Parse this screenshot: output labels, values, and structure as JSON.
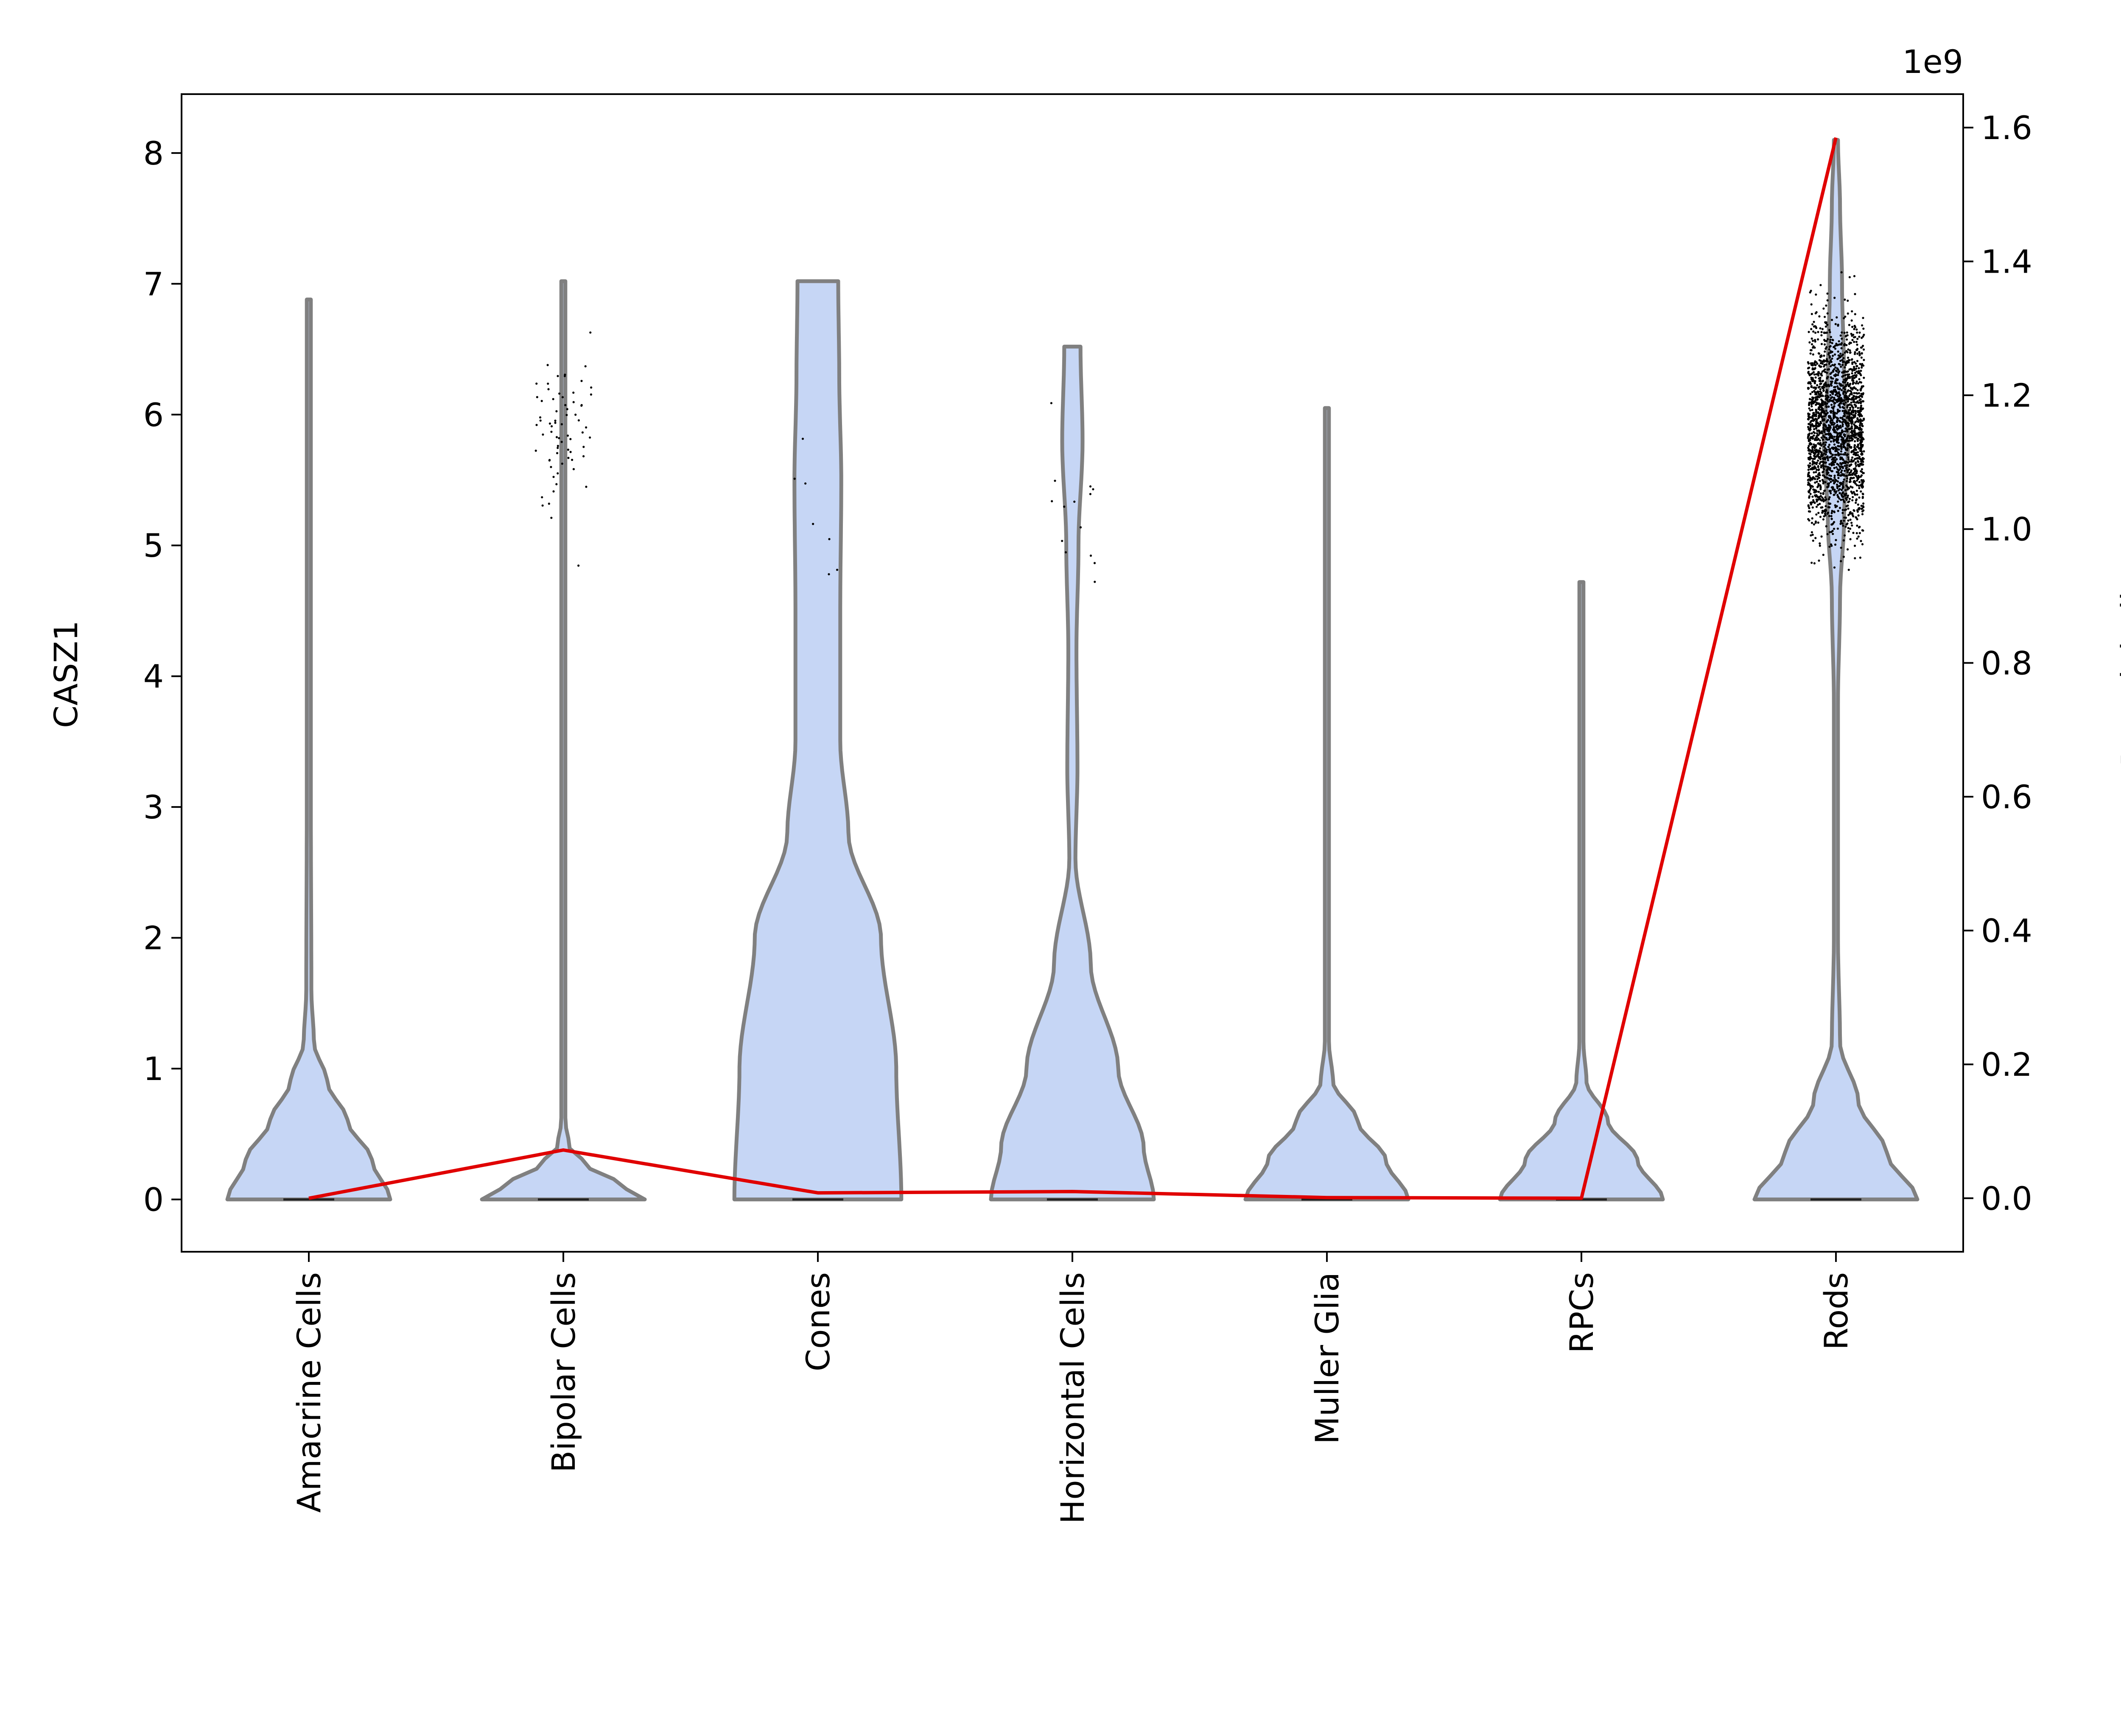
{
  "chart_data": {
    "type": "violin",
    "categories": [
      "Amacrine Cells",
      "Bipolar Cells",
      "Cones",
      "Horizontal Cells",
      "Muller Glia",
      "RPCs",
      "Rods"
    ],
    "ylabel": "CASZ1",
    "y2label": "Pseudobulk",
    "y2_offset_label": "1e9",
    "ylim": [
      -0.4,
      8.45
    ],
    "y2lim": [
      -0.08,
      1.65
    ],
    "yticks": [
      "0",
      "1",
      "2",
      "3",
      "4",
      "5",
      "6",
      "7",
      "8"
    ],
    "y2ticks": [
      "0.0",
      "0.2",
      "0.4",
      "0.6",
      "0.8",
      "1.0",
      "1.2",
      "1.4",
      "1.6"
    ],
    "violins": [
      {
        "category": "Amacrine Cells",
        "max": 6.88,
        "profile": [
          [
            0,
            0.8
          ],
          [
            0.3,
            0.62
          ],
          [
            0.6,
            0.38
          ],
          [
            0.9,
            0.18
          ],
          [
            1.2,
            0.05
          ],
          [
            1.6,
            0.025
          ],
          [
            3,
            0.02
          ],
          [
            6.2,
            0.02
          ],
          [
            6.88,
            0.02
          ]
        ]
      },
      {
        "category": "Bipolar Cells",
        "max": 7.02,
        "profile": [
          [
            0,
            0.8
          ],
          [
            0.12,
            0.55
          ],
          [
            0.25,
            0.25
          ],
          [
            0.4,
            0.06
          ],
          [
            0.6,
            0.02
          ],
          [
            4.5,
            0.02
          ],
          [
            7.02,
            0.02
          ]
        ]
      },
      {
        "category": "Cones",
        "max": 7.02,
        "profile": [
          [
            0,
            0.82
          ],
          [
            1,
            0.77
          ],
          [
            2,
            0.62
          ],
          [
            2.8,
            0.3
          ],
          [
            3.5,
            0.22
          ],
          [
            4.5,
            0.22
          ],
          [
            5.5,
            0.23
          ],
          [
            6.3,
            0.21
          ],
          [
            7.02,
            0.2
          ]
        ]
      },
      {
        "category": "Horizontal Cells",
        "max": 6.52,
        "profile": [
          [
            0,
            0.8
          ],
          [
            0.4,
            0.7
          ],
          [
            1,
            0.45
          ],
          [
            1.8,
            0.18
          ],
          [
            2.6,
            0.03
          ],
          [
            3.3,
            0.05
          ],
          [
            4.2,
            0.04
          ],
          [
            5,
            0.06
          ],
          [
            5.8,
            0.1
          ],
          [
            6.52,
            0.08
          ]
        ]
      },
      {
        "category": "Muller Glia",
        "max": 6.05,
        "profile": [
          [
            0,
            0.8
          ],
          [
            0.3,
            0.58
          ],
          [
            0.6,
            0.3
          ],
          [
            0.9,
            0.06
          ],
          [
            1.2,
            0.02
          ],
          [
            6.05,
            0.02
          ]
        ]
      },
      {
        "category": "RPCs",
        "max": 4.72,
        "profile": [
          [
            0,
            0.8
          ],
          [
            0.3,
            0.55
          ],
          [
            0.6,
            0.26
          ],
          [
            0.9,
            0.05
          ],
          [
            1.2,
            0.02
          ],
          [
            4.72,
            0.02
          ]
        ]
      },
      {
        "category": "Rods",
        "max": 8.1,
        "profile": [
          [
            0,
            0.8
          ],
          [
            0.35,
            0.5
          ],
          [
            0.75,
            0.22
          ],
          [
            1.2,
            0.04
          ],
          [
            2,
            0.02
          ],
          [
            3.8,
            0.02
          ],
          [
            4.6,
            0.04
          ],
          [
            5.2,
            0.08
          ],
          [
            5.8,
            0.12
          ],
          [
            6.3,
            0.08
          ],
          [
            7,
            0.06
          ],
          [
            7.6,
            0.04
          ],
          [
            8.1,
            0.02
          ]
        ]
      }
    ],
    "pseudobulk": [
      {
        "category": "Amacrine Cells",
        "value": 0.0
      },
      {
        "category": "Bipolar Cells",
        "value": 0.072
      },
      {
        "category": "Cones",
        "value": 0.008
      },
      {
        "category": "Horizontal Cells",
        "value": 0.01
      },
      {
        "category": "Muller Glia",
        "value": 0.001
      },
      {
        "category": "RPCs",
        "value": 0.0
      },
      {
        "category": "Rods",
        "value": 1.585
      }
    ],
    "colors": {
      "violin_fill": "#c6d6f5",
      "violin_edge": "#808080",
      "pseudobulk_line": "#e00000",
      "points": "#000000"
    }
  }
}
